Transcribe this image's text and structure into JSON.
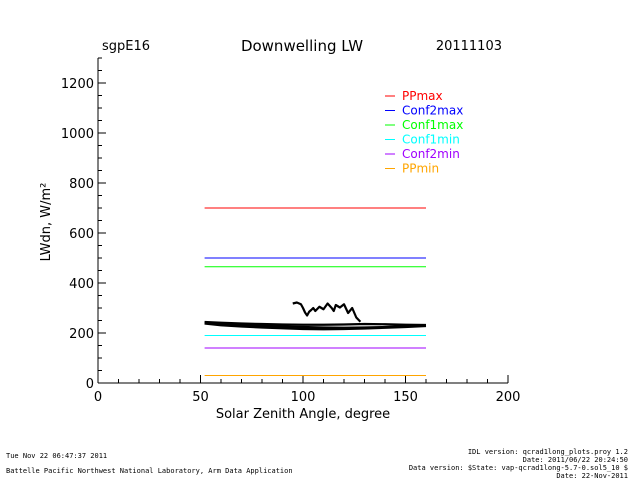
{
  "header": {
    "site": "sgpE16",
    "date": "20111103"
  },
  "footer": {
    "timestamp": "Tue Nov 22 06:47:37 2011",
    "organization": "Battelle Pacific Northwest National Laboratory, Arm Data Application",
    "idl_version": "IDL version: qcrad1long_plots.proy 1.2",
    "idl_date": "Date: 2011/06/22 20:24:50",
    "data_version": "Data version: $State: vap-qcrad1long-5.7-0.sol5_10 $",
    "data_date": "Date: 22-Nov-2011"
  },
  "chart_data": {
    "type": "line",
    "title": "Downwelling LW",
    "xlabel": "Solar Zenith Angle, degree",
    "ylabel": "LWdn, W/m²",
    "xlim": [
      0,
      200
    ],
    "ylim": [
      0,
      1300
    ],
    "xticks": [
      0,
      50,
      100,
      150,
      200
    ],
    "yticks": [
      0,
      200,
      400,
      600,
      800,
      1000,
      1200
    ],
    "grid": false,
    "legend_position": "top-right",
    "series": [
      {
        "name": "PPmax",
        "color": "#ff0000",
        "x": [
          52,
          160
        ],
        "y": [
          700,
          700
        ]
      },
      {
        "name": "Conf2max",
        "color": "#0000ff",
        "x": [
          52,
          160
        ],
        "y": [
          500,
          500
        ]
      },
      {
        "name": "Conf1max",
        "color": "#00ff00",
        "x": [
          52,
          160
        ],
        "y": [
          465,
          465
        ]
      },
      {
        "name": "Conf1min",
        "color": "#00ffff",
        "x": [
          52,
          160
        ],
        "y": [
          190,
          190
        ]
      },
      {
        "name": "Conf2min",
        "color": "#a000ff",
        "x": [
          52,
          160
        ],
        "y": [
          140,
          140
        ]
      },
      {
        "name": "PPmin",
        "color": "#ffa500",
        "x": [
          52,
          160
        ],
        "y": [
          30,
          30
        ]
      }
    ],
    "observations": [
      {
        "color": "#000000",
        "x": [
          52,
          60,
          70,
          80,
          90,
          100,
          110,
          120,
          130,
          140,
          150,
          160
        ],
        "y": [
          242,
          236,
          232,
          229,
          226,
          224,
          222,
          221,
          222,
          224,
          227,
          230
        ]
      },
      {
        "color": "#000000",
        "x": [
          52,
          60,
          70,
          80,
          90,
          100,
          110,
          120,
          130,
          140,
          150,
          160
        ],
        "y": [
          238,
          231,
          226,
          222,
          219,
          216,
          215,
          216,
          218,
          221,
          224,
          228
        ]
      },
      {
        "color": "#000000",
        "x": [
          52,
          60,
          70,
          80,
          90,
          100,
          110,
          120,
          130,
          140,
          150,
          160
        ],
        "y": [
          244,
          241,
          238,
          236,
          234,
          233,
          233,
          234,
          236,
          235,
          233,
          232
        ]
      },
      {
        "color": "#000000",
        "x": [
          95,
          97,
          99,
          100,
          101,
          102,
          103,
          104,
          105,
          106,
          108,
          110,
          112,
          114,
          115,
          116,
          118,
          120,
          122,
          124,
          126,
          128
        ],
        "y": [
          318,
          322,
          315,
          300,
          282,
          270,
          285,
          292,
          300,
          288,
          305,
          295,
          318,
          300,
          288,
          312,
          302,
          315,
          280,
          300,
          262,
          245
        ]
      }
    ]
  }
}
